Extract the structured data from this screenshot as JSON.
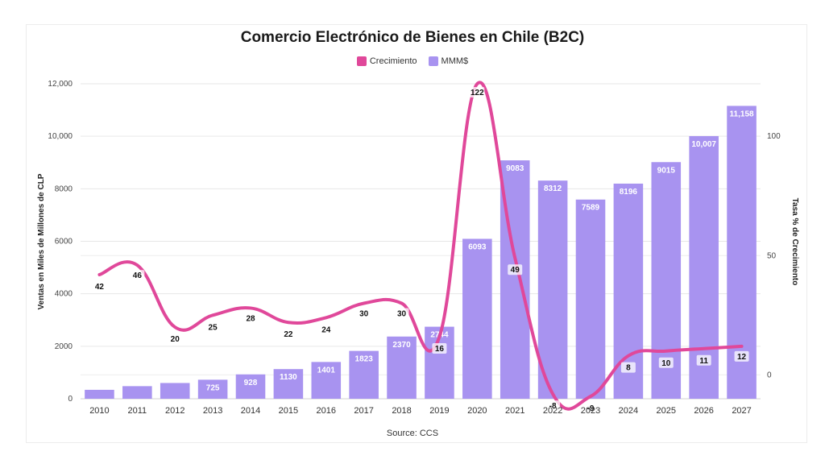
{
  "chart_data": {
    "type": "bar",
    "title": "Comercio Electrónico de Bienes en Chile (B2C)",
    "source": "Source: CCS",
    "categories": [
      "2010",
      "2011",
      "2012",
      "2013",
      "2014",
      "2015",
      "2016",
      "2017",
      "2018",
      "2019",
      "2020",
      "2021",
      "2022",
      "2023",
      "2024",
      "2025",
      "2026",
      "2027"
    ],
    "legend": {
      "position": "top-center",
      "items": [
        "Crecimiento",
        "MMM$"
      ]
    },
    "ylabel_left": "Ventas en Miles de Millones de CLP",
    "ylabel_right": "Tasa % de Crecimiento",
    "ylim_left": [
      0,
      12000
    ],
    "ylim_right": [
      -10,
      122
    ],
    "yticks_left": [
      "12,000",
      "10,000",
      "8000",
      "6000",
      "4000",
      "2000",
      "0"
    ],
    "yticks_right": [
      "100",
      "50",
      "0"
    ],
    "series": [
      {
        "name": "MMM$",
        "type": "bar",
        "color": "#a893f0",
        "values": [
          340,
          480,
          600,
          725,
          928,
          1130,
          1401,
          1823,
          2370,
          2744,
          6093,
          9083,
          8312,
          7589,
          8196,
          9015,
          10007,
          11158
        ],
        "labels": [
          "",
          "",
          "",
          "725",
          "928",
          "1130",
          "1401",
          "1823",
          "2370",
          "2744",
          "6093",
          "9083",
          "8312",
          "7589",
          "8196",
          "9015",
          "10,007",
          "11,158"
        ]
      },
      {
        "name": "Crecimiento",
        "type": "line",
        "axis": "right",
        "color": "#e0489a",
        "values": [
          42,
          46,
          20,
          25,
          28,
          22,
          24,
          30,
          30,
          16,
          122,
          49,
          -8,
          -9,
          8,
          10,
          11,
          12
        ],
        "labels": [
          "42",
          "46",
          "20",
          "25",
          "28",
          "22",
          "24",
          "30",
          "30",
          "16",
          "122",
          "49",
          "-8",
          "-9",
          "8",
          "10",
          "11",
          "12"
        ]
      }
    ]
  }
}
